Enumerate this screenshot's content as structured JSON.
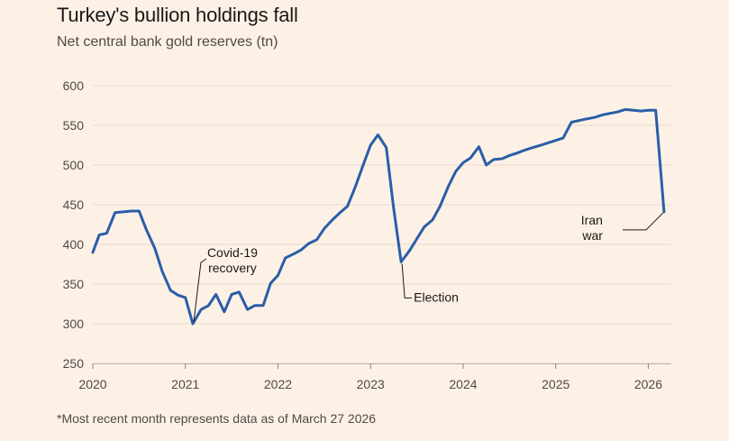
{
  "chart_data": {
    "type": "line",
    "title": "Turkey's bullion holdings fall",
    "subtitle": "Net central bank gold reserves (tn)",
    "footnote": "*Most recent month represents data as of March 27 2026",
    "xlabel": "",
    "ylabel": "",
    "xlim": [
      2020.0,
      2026.2
    ],
    "ylim": [
      250,
      600
    ],
    "yticks": [
      600,
      550,
      500,
      450,
      400,
      350,
      300,
      250
    ],
    "xticks": [
      2020,
      2021,
      2022,
      2023,
      2024,
      2025,
      2026
    ],
    "xtick_labels": [
      "2020",
      "2021",
      "2022",
      "2023",
      "2024",
      "2025",
      "2026"
    ],
    "line_color": "#2a5ea8",
    "series": [
      {
        "name": "Net central bank gold reserves",
        "x": [
          2020.0,
          2020.07,
          2020.15,
          2020.24,
          2020.33,
          2020.42,
          2020.5,
          2020.58,
          2020.67,
          2020.75,
          2020.84,
          2020.92,
          2021.0,
          2021.08,
          2021.17,
          2021.25,
          2021.33,
          2021.42,
          2021.5,
          2021.58,
          2021.67,
          2021.75,
          2021.84,
          2021.92,
          2022.0,
          2022.08,
          2022.17,
          2022.25,
          2022.33,
          2022.42,
          2022.5,
          2022.58,
          2022.67,
          2022.75,
          2022.84,
          2022.92,
          2023.0,
          2023.08,
          2023.17,
          2023.25,
          2023.33,
          2023.42,
          2023.5,
          2023.58,
          2023.67,
          2023.75,
          2023.84,
          2023.92,
          2024.0,
          2024.08,
          2024.17,
          2024.25,
          2024.33,
          2024.42,
          2024.5,
          2024.58,
          2024.67,
          2024.75,
          2024.84,
          2024.92,
          2025.0,
          2025.08,
          2025.17,
          2025.25,
          2025.33,
          2025.42,
          2025.5,
          2025.58,
          2025.67,
          2025.75,
          2025.84,
          2025.92,
          2026.0,
          2026.08,
          2026.17
        ],
        "values": [
          390,
          412,
          414,
          440,
          441,
          442,
          442,
          418,
          395,
          366,
          342,
          336,
          333,
          300,
          318,
          323,
          337,
          315,
          337,
          340,
          318,
          323,
          323,
          351,
          361,
          383,
          388,
          393,
          401,
          406,
          420,
          430,
          440,
          448,
          474,
          500,
          525,
          538,
          522,
          445,
          378,
          392,
          407,
          422,
          431,
          448,
          473,
          492,
          503,
          509,
          523,
          500,
          507,
          508,
          512,
          515,
          519,
          522,
          525,
          528,
          531,
          534,
          554,
          556,
          558,
          560,
          563,
          565,
          567,
          570,
          569,
          568,
          569,
          569,
          441
        ]
      }
    ],
    "annotations": [
      {
        "lines": [
          "Covid-19",
          "recovery"
        ],
        "x": 2021.08,
        "y": 300,
        "align": "center"
      },
      {
        "lines": [
          "Election"
        ],
        "x": 2023.33,
        "y": 378,
        "align": "start"
      },
      {
        "lines": [
          "Iran",
          "war"
        ],
        "x": 2026.17,
        "y": 441,
        "align": "end"
      }
    ]
  }
}
